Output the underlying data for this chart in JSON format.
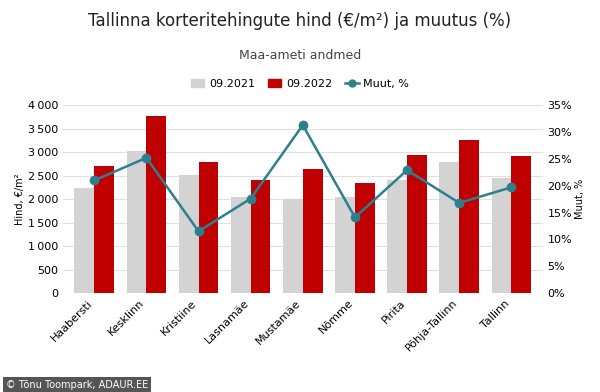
{
  "title": "Tallinna korteritehingute hind (€/m²) ja muutus (%)",
  "subtitle": "Maa-ameti andmed",
  "ylabel_left": "Hind, €/m²",
  "ylabel_right": "Muut, %",
  "categories": [
    "Haabersti",
    "Kesklinn",
    "Kristiine",
    "Lasnamäe",
    "Mustamäe",
    "Nõmme",
    "Pirita",
    "Põhja-Tallinn",
    "Tallinn"
  ],
  "values_2021": [
    2230,
    3020,
    2510,
    2040,
    2010,
    2050,
    2400,
    2800,
    2440
  ],
  "values_2022": [
    2700,
    3780,
    2800,
    2400,
    2640,
    2340,
    2950,
    3270,
    2920
  ],
  "muutus": [
    21.0,
    25.2,
    11.5,
    17.6,
    31.3,
    14.1,
    22.9,
    16.8,
    19.7
  ],
  "bar_color_2021": "#d3d3d3",
  "bar_color_2022": "#c00000",
  "line_color": "#2e7f8e",
  "ylim_left": [
    0,
    4000
  ],
  "ylim_right": [
    0,
    35
  ],
  "yticks_left": [
    0,
    500,
    1000,
    1500,
    2000,
    2500,
    3000,
    3500,
    4000
  ],
  "yticks_right": [
    0,
    5,
    10,
    15,
    20,
    25,
    30,
    35
  ],
  "background_color": "#ffffff",
  "legend_labels": [
    "09.2021",
    "09.2022",
    "Muut, %"
  ],
  "title_fontsize": 12,
  "subtitle_fontsize": 9,
  "axis_label_fontsize": 7,
  "tick_fontsize": 8,
  "legend_fontsize": 8,
  "watermark": "© Tõnu Toompark, ADAUR.EE",
  "watermark_bg": "#e87722",
  "watermark_text_color": "#ffffff"
}
